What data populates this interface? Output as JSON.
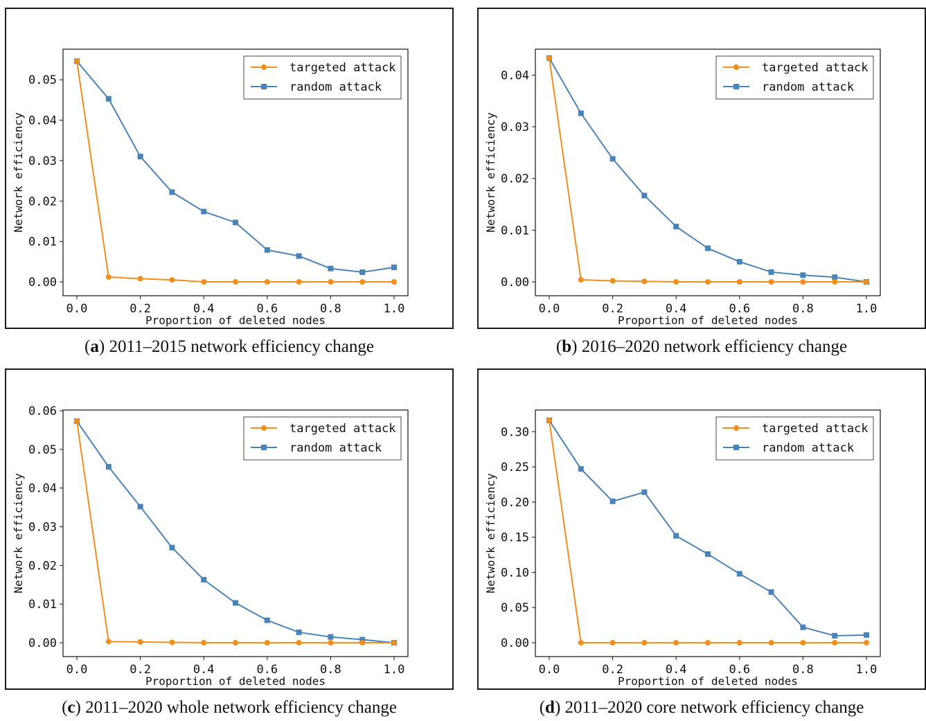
{
  "legend": {
    "targeted": "targeted attack",
    "random": "random attack"
  },
  "colors": {
    "targeted": "#f28e1c",
    "random": "#4a83b8",
    "axis": "#111111"
  },
  "chart_data": [
    {
      "type": "line",
      "panel_letter": "a",
      "caption": "2011–2015 network efficiency change",
      "xlabel": "Proportion of deleted nodes",
      "ylabel": "Network efficiency",
      "xlim": [
        0,
        1
      ],
      "ylim": [
        0,
        0.055
      ],
      "xticks": [
        0.0,
        0.2,
        0.4,
        0.6,
        0.8,
        1.0
      ],
      "xtick_labels": [
        "0.0",
        "0.2",
        "0.4",
        "0.6",
        "0.8",
        "1.0"
      ],
      "yticks": [
        0.0,
        0.01,
        0.02,
        0.03,
        0.04,
        0.05
      ],
      "ytick_labels": [
        "0.00",
        "0.01",
        "0.02",
        "0.03",
        "0.04",
        "0.05"
      ],
      "legend_position": "top-right",
      "x": [
        0.0,
        0.1,
        0.2,
        0.3,
        0.4,
        0.5,
        0.6,
        0.7,
        0.8,
        0.9,
        1.0
      ],
      "series": [
        {
          "name": "targeted attack",
          "marker": "circle",
          "values": [
            0.0546,
            0.0012,
            0.0008,
            0.0005,
            0.0,
            0.0,
            0.0,
            0.0,
            0.0,
            0.0,
            0.0
          ]
        },
        {
          "name": "random attack",
          "marker": "square",
          "values": [
            0.0546,
            0.0453,
            0.031,
            0.0222,
            0.0174,
            0.0147,
            0.0079,
            0.0064,
            0.0033,
            0.0024,
            0.0036
          ]
        }
      ]
    },
    {
      "type": "line",
      "panel_letter": "b",
      "caption": "2016–2020 network efficiency change",
      "xlabel": "Proportion of deleted nodes",
      "ylabel": "Network efficiency",
      "xlim": [
        0,
        1
      ],
      "ylim": [
        0,
        0.043
      ],
      "xticks": [
        0.0,
        0.2,
        0.4,
        0.6,
        0.8,
        1.0
      ],
      "xtick_labels": [
        "0.0",
        "0.2",
        "0.4",
        "0.6",
        "0.8",
        "1.0"
      ],
      "yticks": [
        0.0,
        0.01,
        0.02,
        0.03,
        0.04
      ],
      "ytick_labels": [
        "0.00",
        "0.01",
        "0.02",
        "0.03",
        "0.04"
      ],
      "legend_position": "top-right",
      "x": [
        0.0,
        0.1,
        0.2,
        0.3,
        0.4,
        0.5,
        0.6,
        0.7,
        0.8,
        0.9,
        1.0
      ],
      "series": [
        {
          "name": "targeted attack",
          "marker": "circle",
          "values": [
            0.0433,
            0.0004,
            0.0002,
            0.0001,
            0.0,
            0.0,
            0.0,
            0.0,
            0.0,
            0.0,
            0.0
          ]
        },
        {
          "name": "random attack",
          "marker": "square",
          "values": [
            0.0433,
            0.0326,
            0.0238,
            0.0167,
            0.0107,
            0.0065,
            0.0039,
            0.0019,
            0.0013,
            0.0009,
            0.0
          ]
        }
      ]
    },
    {
      "type": "line",
      "panel_letter": "c",
      "caption": "2011–2020 whole network efficiency change",
      "xlabel": "Proportion of deleted nodes",
      "ylabel": "Network efficiency",
      "xlim": [
        0,
        1
      ],
      "ylim": [
        0,
        0.0575
      ],
      "xticks": [
        0.0,
        0.2,
        0.4,
        0.6,
        0.8,
        1.0
      ],
      "xtick_labels": [
        "0.0",
        "0.2",
        "0.4",
        "0.6",
        "0.8",
        "1.0"
      ],
      "yticks": [
        0.0,
        0.01,
        0.02,
        0.03,
        0.04,
        0.05,
        0.06
      ],
      "ytick_labels": [
        "0.00",
        "0.01",
        "0.02",
        "0.03",
        "0.04",
        "0.05",
        "0.06"
      ],
      "legend_position": "top-right",
      "x": [
        0.0,
        0.1,
        0.2,
        0.3,
        0.4,
        0.5,
        0.6,
        0.7,
        0.8,
        0.9,
        1.0
      ],
      "series": [
        {
          "name": "targeted attack",
          "marker": "circle",
          "values": [
            0.0573,
            0.0003,
            0.0002,
            0.0001,
            0.0,
            0.0,
            0.0,
            0.0,
            0.0,
            0.0,
            0.0
          ]
        },
        {
          "name": "random attack",
          "marker": "square",
          "values": [
            0.0573,
            0.0455,
            0.0352,
            0.0246,
            0.0163,
            0.0103,
            0.0058,
            0.0027,
            0.0015,
            0.0008,
            0.0
          ]
        }
      ]
    },
    {
      "type": "line",
      "panel_letter": "d",
      "caption": "2011–2020 core network efficiency change",
      "xlabel": "Proportion of deleted nodes",
      "ylabel": "Network efficiency",
      "xlim": [
        0,
        1
      ],
      "ylim": [
        0,
        0.316
      ],
      "xticks": [
        0.0,
        0.2,
        0.4,
        0.6,
        0.8,
        1.0
      ],
      "xtick_labels": [
        "0.0",
        "0.2",
        "0.4",
        "0.6",
        "0.8",
        "1.0"
      ],
      "yticks": [
        0.0,
        0.05,
        0.1,
        0.15,
        0.2,
        0.25,
        0.3
      ],
      "ytick_labels": [
        "0.00",
        "0.05",
        "0.10",
        "0.15",
        "0.20",
        "0.25",
        "0.30"
      ],
      "legend_position": "top-right",
      "x": [
        0.0,
        0.1,
        0.2,
        0.3,
        0.4,
        0.5,
        0.6,
        0.7,
        0.8,
        0.9,
        1.0
      ],
      "series": [
        {
          "name": "targeted attack",
          "marker": "circle",
          "values": [
            0.316,
            0.0,
            0.0,
            0.0,
            0.0,
            0.0,
            0.0,
            0.0,
            0.0,
            0.0,
            0.0
          ]
        },
        {
          "name": "random attack",
          "marker": "square",
          "values": [
            0.316,
            0.247,
            0.201,
            0.214,
            0.152,
            0.126,
            0.098,
            0.072,
            0.022,
            0.01,
            0.011
          ]
        }
      ]
    }
  ]
}
